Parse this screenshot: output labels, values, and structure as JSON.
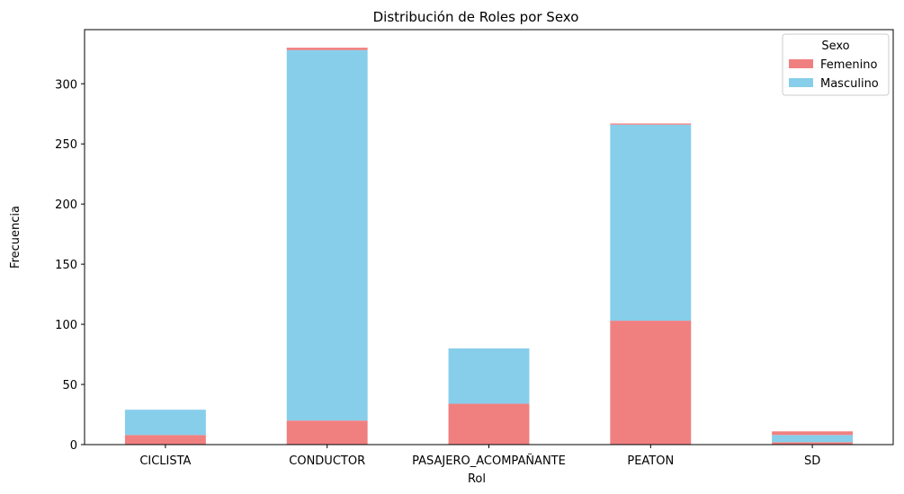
{
  "chart_data": {
    "type": "bar",
    "stacked": true,
    "title": "Distribución de Roles por Sexo",
    "xlabel": "Rol",
    "ylabel": "Frecuencia",
    "categories": [
      "CICLISTA",
      "CONDUCTOR",
      "PASAJERO_ACOMPAÑANTE",
      "PEATON",
      "SD"
    ],
    "series": [
      {
        "name": "Femenino",
        "color": "#f08080",
        "values": [
          8,
          20,
          34,
          103,
          2
        ]
      },
      {
        "name": "Masculino",
        "color": "#87ceeb",
        "values": [
          21,
          308,
          46,
          163,
          6
        ]
      },
      {
        "name": "",
        "color": "#f08080",
        "values": [
          0,
          2,
          0,
          1,
          3
        ]
      }
    ],
    "ylim": [
      0,
      345
    ],
    "yticks": [
      0,
      50,
      100,
      150,
      200,
      250,
      300
    ],
    "grid": false,
    "legend": {
      "title": "Sexo",
      "placement": "top-right",
      "entries": [
        "Femenino",
        "Masculino"
      ]
    }
  }
}
